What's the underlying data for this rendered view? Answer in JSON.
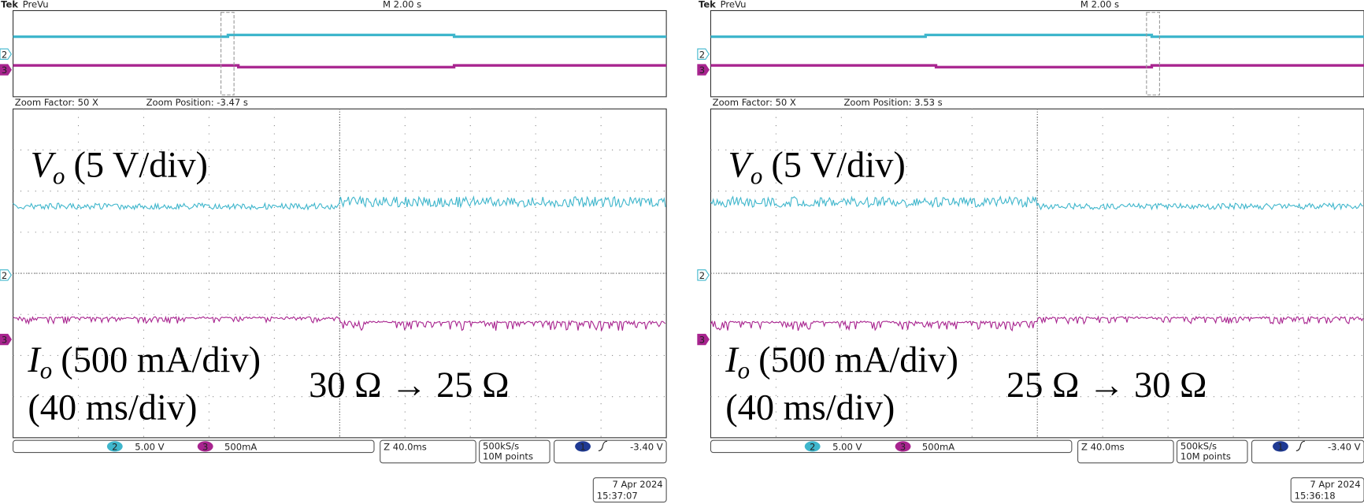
{
  "panels": [
    {
      "header": {
        "brand": "Tek",
        "mode": "PreVu",
        "timebase": "M 2.00 s"
      },
      "zoom_factor": "Zoom Factor: 50 X",
      "zoom_position": "Zoom Position: -3.47 s",
      "channel_markers": [
        "2",
        "3"
      ],
      "vo_label": {
        "symbol": "V",
        "subscript": "o",
        "scale": "(5 V/div)"
      },
      "io_label": {
        "symbol": "I",
        "subscript": "o",
        "scale": "(500 mA/div)"
      },
      "time_scale": "(40 ms/div)",
      "transition": "30 Ω → 25 Ω",
      "status": {
        "ch2_badge": "2",
        "ch2_scale": "5.00 V",
        "ch3_badge": "3",
        "ch3_scale": "500mA",
        "zoom": "Z 40.0ms",
        "sample_rate": "500kS/s",
        "record_length": "10M points",
        "trigger_badge": "1",
        "trigger_level": "-3.40 V"
      },
      "date": "7 Apr 2024",
      "time": "15:37:07"
    },
    {
      "header": {
        "brand": "Tek",
        "mode": "PreVu",
        "timebase": "M 2.00 s"
      },
      "zoom_factor": "Zoom Factor: 50 X",
      "zoom_position": "Zoom Position: 3.53 s",
      "channel_markers": [
        "2",
        "3"
      ],
      "vo_label": {
        "symbol": "V",
        "subscript": "o",
        "scale": "(5 V/div)"
      },
      "io_label": {
        "symbol": "I",
        "subscript": "o",
        "scale": "(500 mA/div)"
      },
      "time_scale": "(40 ms/div)",
      "transition": "25 Ω → 30 Ω",
      "status": {
        "ch2_badge": "2",
        "ch2_scale": "5.00 V",
        "ch3_badge": "3",
        "ch3_scale": "500mA",
        "zoom": "Z 40.0ms",
        "sample_rate": "500kS/s",
        "record_length": "10M points",
        "trigger_badge": "1",
        "trigger_level": "-3.40 V"
      },
      "date": "7 Apr 2024",
      "time": "15:36:18"
    }
  ]
}
